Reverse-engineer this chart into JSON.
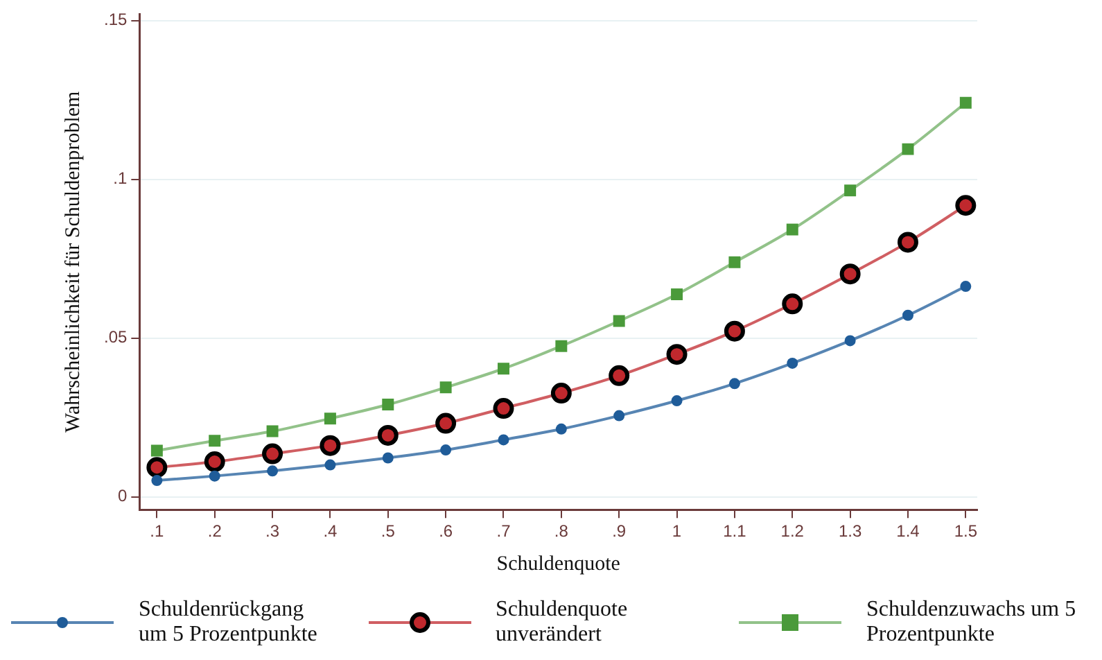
{
  "chart_data": {
    "type": "line",
    "xlabel": "Schuldenquote",
    "ylabel": "Wahrscheinlichkeit für Schuldenproblem",
    "x": [
      0.1,
      0.2,
      0.3,
      0.4,
      0.5,
      0.6,
      0.7,
      0.8,
      0.9,
      1,
      1.1,
      1.2,
      1.3,
      1.4,
      1.5
    ],
    "series": [
      {
        "name": "Schuldenrückgang um 5 Prozentpunkte",
        "color": "#1f5c99",
        "marker": "circle",
        "values": [
          0.0052,
          0.0066,
          0.0082,
          0.0101,
          0.0123,
          0.0148,
          0.018,
          0.0214,
          0.0256,
          0.0303,
          0.0357,
          0.0421,
          0.0492,
          0.0572,
          0.0663
        ]
      },
      {
        "name": "Schuldenquote unverändert",
        "color": "#c0282d",
        "marker": "circle",
        "values": [
          0.0093,
          0.0111,
          0.0136,
          0.0162,
          0.0194,
          0.0232,
          0.0279,
          0.0327,
          0.0382,
          0.0449,
          0.0522,
          0.0608,
          0.0702,
          0.0802,
          0.0918
        ]
      },
      {
        "name": "Schuldenzuwachs um 5 Prozentpunkte",
        "color": "#4a9a3a",
        "marker": "square",
        "values": [
          0.0146,
          0.0177,
          0.0207,
          0.0247,
          0.0291,
          0.0345,
          0.0404,
          0.0475,
          0.0554,
          0.0638,
          0.0739,
          0.0842,
          0.0965,
          0.1095,
          0.1241
        ]
      }
    ],
    "xlim": [
      0.07,
      1.52
    ],
    "xticks": [
      {
        "value": 0.1,
        "label": ".1"
      },
      {
        "value": 0.2,
        "label": ".2"
      },
      {
        "value": 0.3,
        "label": ".3"
      },
      {
        "value": 0.4,
        "label": ".4"
      },
      {
        "value": 0.5,
        "label": ".5"
      },
      {
        "value": 0.6,
        "label": ".6"
      },
      {
        "value": 0.7,
        "label": ".7"
      },
      {
        "value": 0.8,
        "label": ".8"
      },
      {
        "value": 0.9,
        "label": ".9"
      },
      1,
      1.1,
      1.2,
      1.3,
      1.4,
      1.5
    ],
    "ylim": [
      -0.004,
      0.152
    ],
    "yticks": [
      0,
      {
        "value": 0.05,
        "label": ".05"
      },
      {
        "value": 0.1,
        "label": ".1"
      },
      {
        "value": 0.15,
        "label": ".15"
      }
    ],
    "grid": "y",
    "legend": "bottom",
    "line_style": "solid"
  }
}
